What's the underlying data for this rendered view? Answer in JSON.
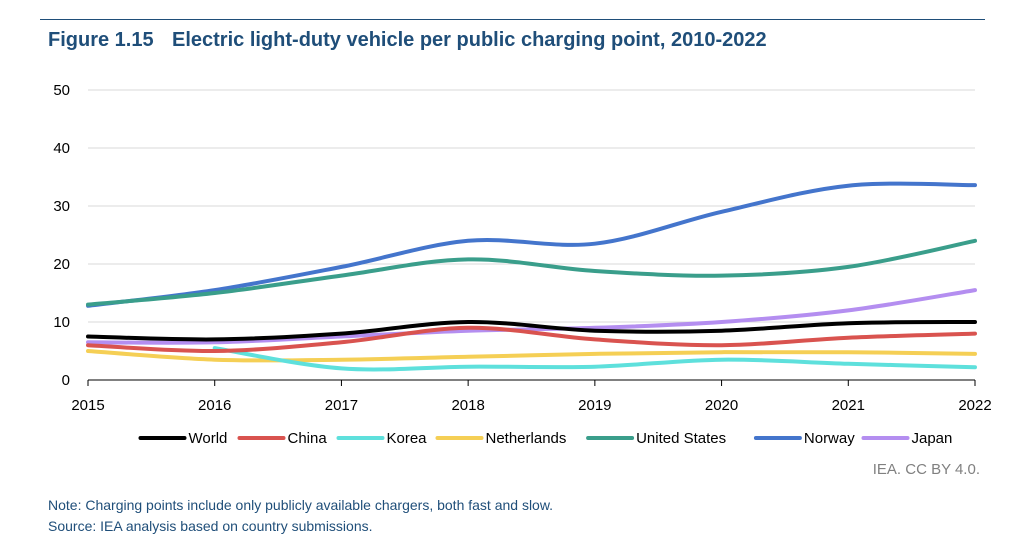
{
  "figure": {
    "number": "Figure 1.15",
    "title": "Electric light-duty vehicle per public charging point, 2010-2022"
  },
  "credit": "IEA. CC BY 4.0.",
  "note": "Note: Charging points include only publicly available chargers, both fast and slow.",
  "source": "Source: IEA analysis based on country submissions.",
  "chart_data": {
    "type": "line",
    "title": "Electric light-duty vehicle per public charging point, 2010-2022",
    "xlabel": "",
    "ylabel": "",
    "x": [
      2015,
      2016,
      2017,
      2018,
      2019,
      2020,
      2021,
      2022
    ],
    "x_tick_labels": [
      "2015",
      "2016",
      "2017",
      "2018",
      "2019",
      "2020",
      "2021",
      "2022"
    ],
    "ylim": [
      0,
      50
    ],
    "y_ticks": [
      0,
      10,
      20,
      30,
      40,
      50
    ],
    "grid": true,
    "legend_position": "bottom",
    "series": [
      {
        "name": "World",
        "color": "#000000",
        "values": [
          7.5,
          7.0,
          8.0,
          10.0,
          8.5,
          8.5,
          9.8,
          10.0
        ]
      },
      {
        "name": "China",
        "color": "#d9534f",
        "values": [
          6.0,
          5.0,
          6.5,
          9.0,
          7.0,
          6.0,
          7.3,
          8.0
        ]
      },
      {
        "name": "Korea",
        "color": "#5ee0dc",
        "values": [
          null,
          5.5,
          2.0,
          2.3,
          2.3,
          3.5,
          2.8,
          2.2
        ]
      },
      {
        "name": "Netherlands",
        "color": "#f5cf55",
        "values": [
          5.0,
          3.5,
          3.5,
          4.0,
          4.5,
          4.8,
          4.8,
          4.5
        ]
      },
      {
        "name": "United States",
        "color": "#3a9e8b",
        "values": [
          13.0,
          15.0,
          18.0,
          20.8,
          18.8,
          18.0,
          19.5,
          24.0
        ]
      },
      {
        "name": "Norway",
        "color": "#4475cc",
        "values": [
          12.8,
          15.5,
          19.5,
          24.0,
          23.5,
          29.0,
          33.5,
          33.6
        ]
      },
      {
        "name": "Japan",
        "color": "#b48ef0",
        "values": [
          6.5,
          6.5,
          7.5,
          8.5,
          9.0,
          10.0,
          12.0,
          15.5
        ]
      }
    ]
  }
}
